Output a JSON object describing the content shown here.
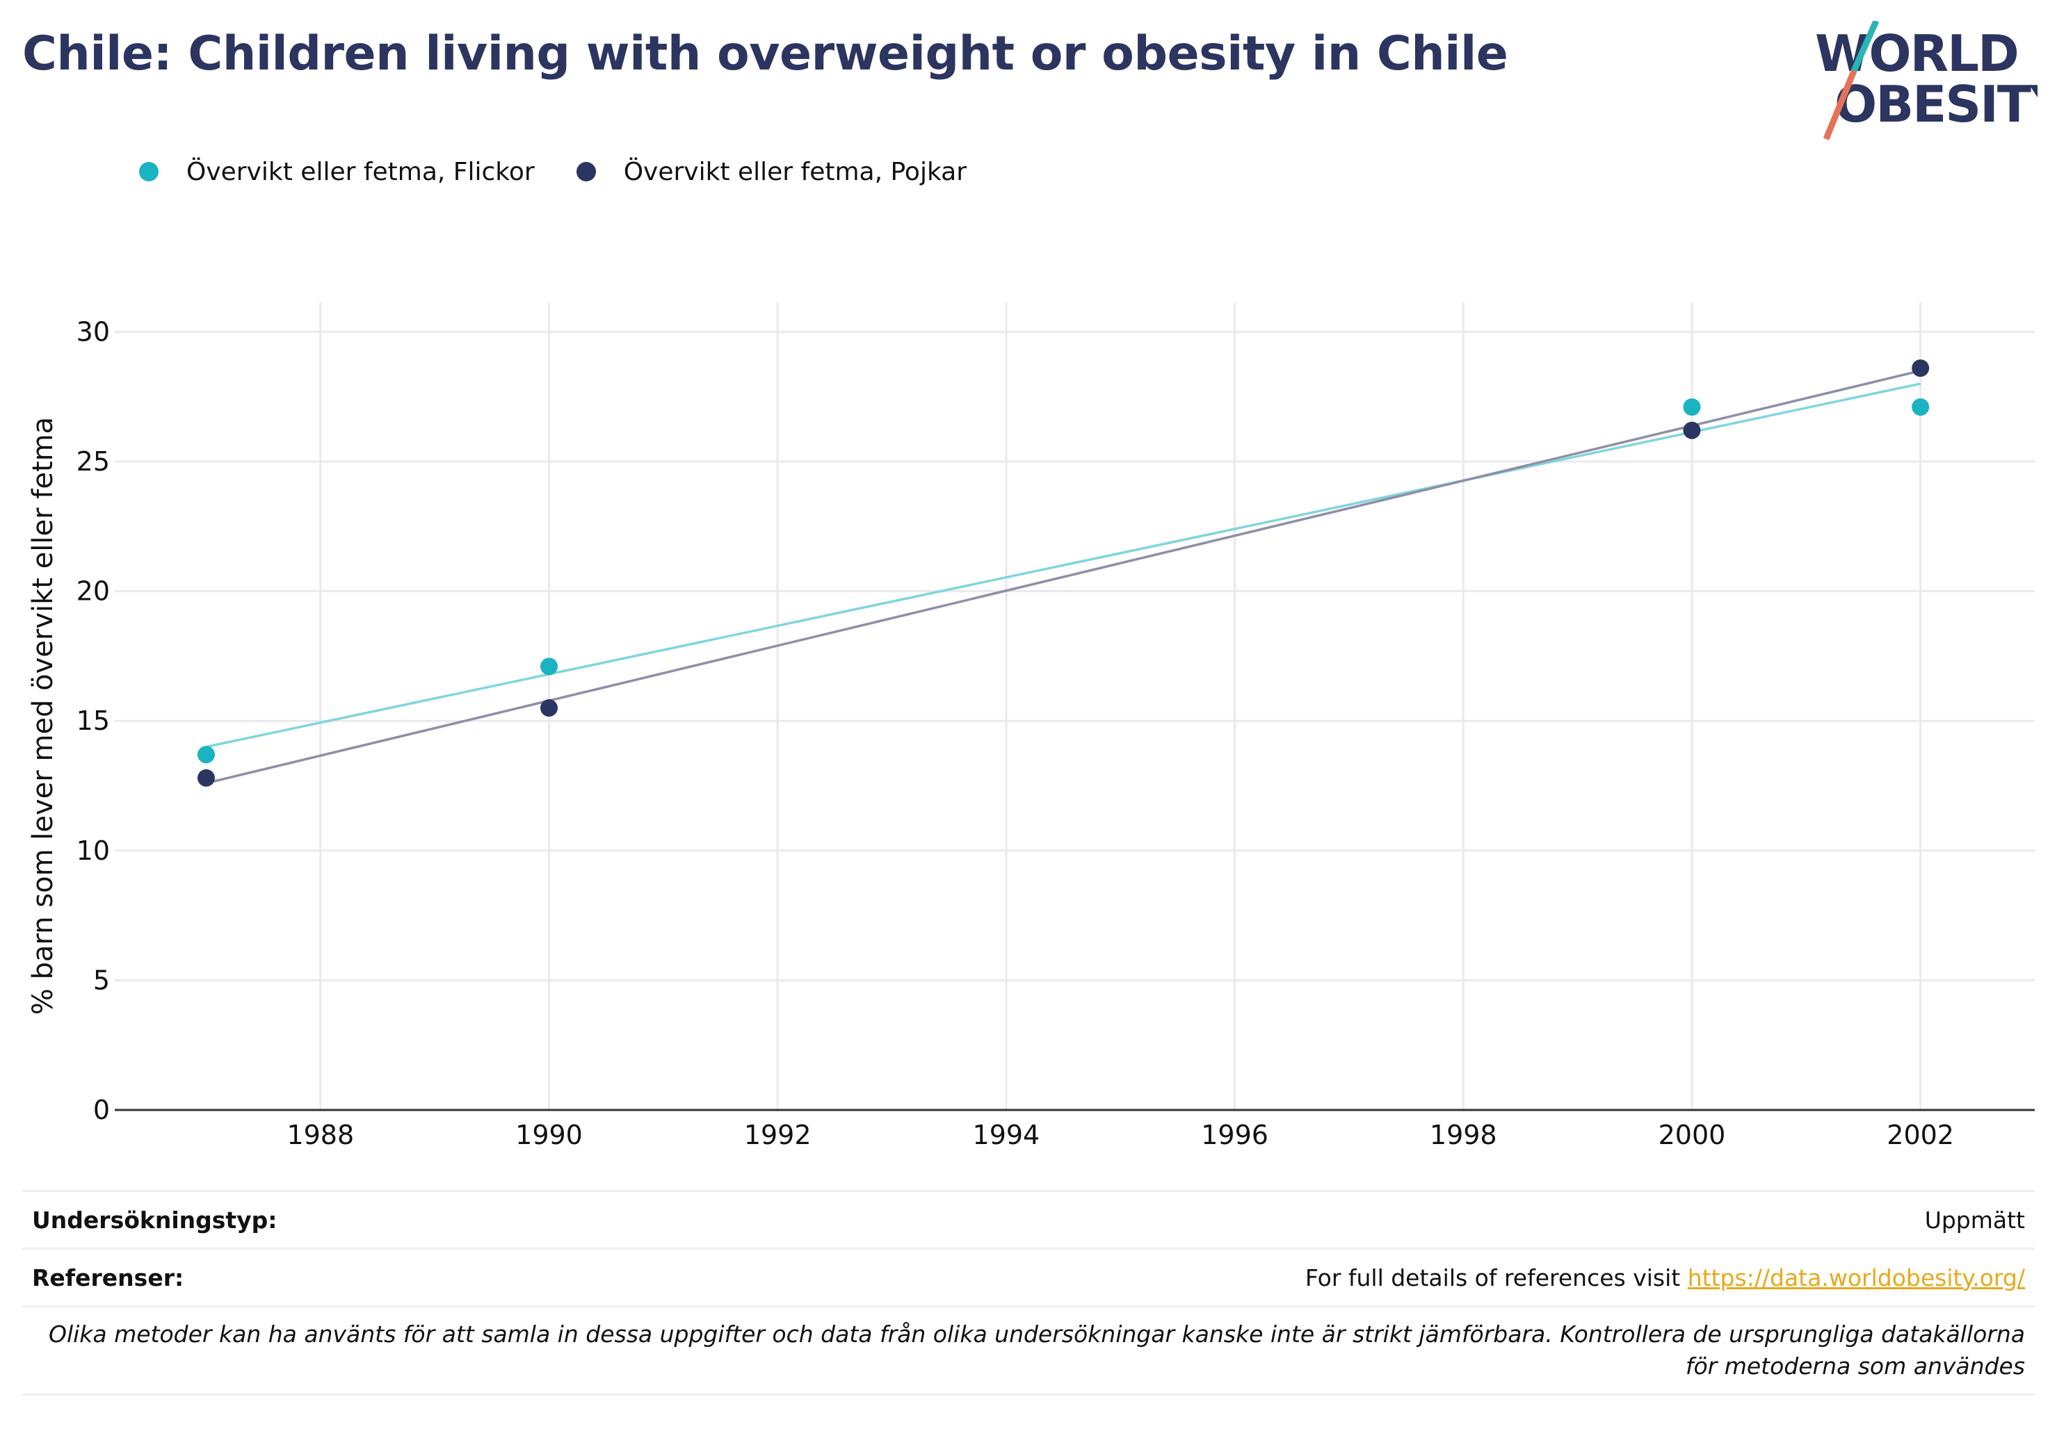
{
  "title": "Chile: Children living with overweight or obesity in Chile",
  "logo": {
    "line1": "WORLD",
    "line2": "OBESITY",
    "colors": {
      "text": "#2c3560",
      "slash_top": "#2bb5b4",
      "slash_bottom": "#e5735a"
    }
  },
  "legend": [
    {
      "label": "Övervikt eller fetma, Flickor",
      "color": "#1ab3c1"
    },
    {
      "label": "Övervikt eller fetma, Pojkar",
      "color": "#2a3561"
    }
  ],
  "chart_data": {
    "type": "scatter",
    "title": "Chile: Children living with overweight or obesity in Chile",
    "xlabel": "",
    "ylabel": "% barn som lever med övervikt eller fetma",
    "xlim": [
      1986.2,
      2003.0
    ],
    "ylim": [
      0,
      30
    ],
    "x_ticks": [
      1988,
      1990,
      1992,
      1994,
      1996,
      1998,
      2000,
      2002
    ],
    "y_ticks": [
      0,
      5,
      10,
      15,
      20,
      25,
      30
    ],
    "grid": true,
    "legend_position": "top-left",
    "series": [
      {
        "name": "Övervikt eller fetma, Flickor",
        "color": "#1ab3c1",
        "trend_color": "#7fd6dc",
        "points": [
          {
            "x": 1987,
            "y": 13.7
          },
          {
            "x": 1990,
            "y": 17.1
          },
          {
            "x": 2000,
            "y": 27.1
          },
          {
            "x": 2002,
            "y": 27.1
          }
        ],
        "trendline": [
          {
            "x": 1987,
            "y": 14.0
          },
          {
            "x": 2002,
            "y": 28.0
          }
        ]
      },
      {
        "name": "Övervikt eller fetma, Pojkar",
        "color": "#2a3561",
        "trend_color": "#8e8fa6",
        "points": [
          {
            "x": 1987,
            "y": 12.8
          },
          {
            "x": 1990,
            "y": 15.5
          },
          {
            "x": 2000,
            "y": 26.2
          },
          {
            "x": 2002,
            "y": 28.6
          }
        ],
        "trendline": [
          {
            "x": 1987,
            "y": 12.6
          },
          {
            "x": 2002,
            "y": 28.5
          }
        ]
      }
    ]
  },
  "footer": {
    "survey_type_label": "Undersökningstyp:",
    "survey_type_value": "Uppmätt",
    "references_label": "Referenser:",
    "references_text": "For full details of references visit ",
    "references_link": "https://data.worldobesity.org/",
    "note": "Olika metoder kan ha använts för att samla in dessa uppgifter och data från olika undersökningar kanske inte är strikt jämförbara. Kontrollera de ursprungliga datakällorna för metoderna som användes"
  }
}
